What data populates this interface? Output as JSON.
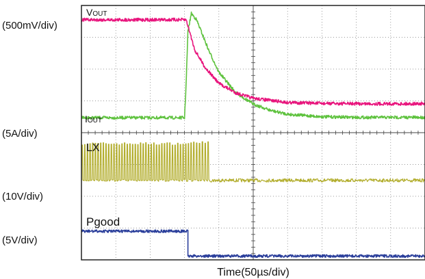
{
  "chart_data": {
    "type": "line",
    "title": "",
    "xlabel": "Time(50µs/div)",
    "x_divisions": 10,
    "y_divisions": 8,
    "grid": true,
    "trace_labels": {
      "vout": {
        "main": "V",
        "sub": "OUT"
      },
      "iout": {
        "main": "I",
        "sub": "OUT"
      },
      "lx": {
        "main": "LX",
        "sub": ""
      },
      "pgood": {
        "main": "Pgood",
        "sub": ""
      }
    },
    "scale_labels": {
      "vout": "(500mV/div)",
      "iout": "(5A/div)",
      "lx": "(10V/div)",
      "pgood": "(5V/div)"
    },
    "colors": {
      "vout": "#e8157d",
      "iout": "#5ec23e",
      "lx": "#b2ad2c",
      "pgood": "#2b3f9b",
      "grid": "#777777",
      "frame": "#222222"
    },
    "series": [
      {
        "name": "VOUT",
        "x_div": [
          0,
          3.05,
          3.3,
          3.6,
          4.0,
          4.5,
          5.0,
          6.0,
          7.0,
          8.0,
          10.0
        ],
        "y_div": [
          7.55,
          7.55,
          6.6,
          6.05,
          5.55,
          5.25,
          5.08,
          4.95,
          4.92,
          4.91,
          4.91
        ]
      },
      {
        "name": "IOUT",
        "x_div": [
          0,
          3.0,
          3.05,
          3.1,
          3.2,
          3.35,
          3.5,
          3.7,
          4.0,
          4.5,
          5.0,
          5.5,
          6.0,
          7.0,
          8.0,
          10.0
        ],
        "y_div": [
          4.47,
          4.47,
          5.6,
          7.2,
          7.75,
          7.55,
          7.15,
          6.6,
          5.9,
          5.25,
          4.9,
          4.7,
          4.58,
          4.5,
          4.48,
          4.48
        ]
      },
      {
        "name": "LX",
        "segments": [
          {
            "x_start": 0,
            "x_end": 3.25,
            "low_div": 2.5,
            "high_div": 3.65,
            "periods": 42
          },
          {
            "x_start": 3.25,
            "x_end": 3.75,
            "low_div": 2.5,
            "high_div": 3.7,
            "periods": 6
          }
        ],
        "baseline_div": 2.5,
        "x_end": 10.0
      },
      {
        "name": "Pgood",
        "x_div": [
          0,
          3.1,
          3.1,
          10.0
        ],
        "y_div": [
          0.9,
          0.9,
          0.12,
          0.12
        ]
      }
    ]
  }
}
